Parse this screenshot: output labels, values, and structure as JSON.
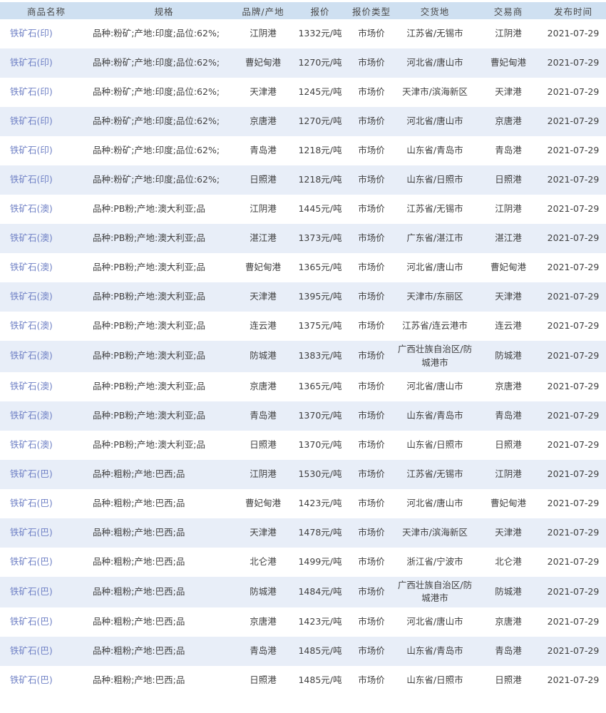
{
  "colors": {
    "header_bg": "#cfe0f1",
    "stripe_bg": "#e8eef8",
    "link": "#6f80c5",
    "text": "#404040",
    "header_text": "#4a4a4a"
  },
  "table": {
    "columns": [
      {
        "key": "product",
        "label": "商品名称"
      },
      {
        "key": "spec",
        "label": "规格"
      },
      {
        "key": "brand_origin",
        "label": "品牌/产地"
      },
      {
        "key": "price",
        "label": "报价"
      },
      {
        "key": "price_type",
        "label": "报价类型"
      },
      {
        "key": "delivery_place",
        "label": "交货地"
      },
      {
        "key": "trader",
        "label": "交易商"
      },
      {
        "key": "publish_date",
        "label": "发布时间"
      }
    ],
    "rows": [
      {
        "product": "铁矿石(印)",
        "spec": "品种:粉矿;产地:印度;品位:62%;",
        "brand_origin": "江阴港",
        "price": "1332元/吨",
        "price_type": "市场价",
        "delivery_place": "江苏省/无锡市",
        "trader": "江阴港",
        "publish_date": "2021-07-29"
      },
      {
        "product": "铁矿石(印)",
        "spec": "品种:粉矿;产地:印度;品位:62%;",
        "brand_origin": "曹妃甸港",
        "price": "1270元/吨",
        "price_type": "市场价",
        "delivery_place": "河北省/唐山市",
        "trader": "曹妃甸港",
        "publish_date": "2021-07-29"
      },
      {
        "product": "铁矿石(印)",
        "spec": "品种:粉矿;产地:印度;品位:62%;",
        "brand_origin": "天津港",
        "price": "1245元/吨",
        "price_type": "市场价",
        "delivery_place": "天津市/滨海新区",
        "trader": "天津港",
        "publish_date": "2021-07-29"
      },
      {
        "product": "铁矿石(印)",
        "spec": "品种:粉矿;产地:印度;品位:62%;",
        "brand_origin": "京唐港",
        "price": "1270元/吨",
        "price_type": "市场价",
        "delivery_place": "河北省/唐山市",
        "trader": "京唐港",
        "publish_date": "2021-07-29"
      },
      {
        "product": "铁矿石(印)",
        "spec": "品种:粉矿;产地:印度;品位:62%;",
        "brand_origin": "青岛港",
        "price": "1218元/吨",
        "price_type": "市场价",
        "delivery_place": "山东省/青岛市",
        "trader": "青岛港",
        "publish_date": "2021-07-29"
      },
      {
        "product": "铁矿石(印)",
        "spec": "品种:粉矿;产地:印度;品位:62%;",
        "brand_origin": "日照港",
        "price": "1218元/吨",
        "price_type": "市场价",
        "delivery_place": "山东省/日照市",
        "trader": "日照港",
        "publish_date": "2021-07-29"
      },
      {
        "product": "铁矿石(澳)",
        "spec": "品种:PB粉;产地:澳大利亚;品",
        "brand_origin": "江阴港",
        "price": "1445元/吨",
        "price_type": "市场价",
        "delivery_place": "江苏省/无锡市",
        "trader": "江阴港",
        "publish_date": "2021-07-29"
      },
      {
        "product": "铁矿石(澳)",
        "spec": "品种:PB粉;产地:澳大利亚;品",
        "brand_origin": "湛江港",
        "price": "1373元/吨",
        "price_type": "市场价",
        "delivery_place": "广东省/湛江市",
        "trader": "湛江港",
        "publish_date": "2021-07-29"
      },
      {
        "product": "铁矿石(澳)",
        "spec": "品种:PB粉;产地:澳大利亚;品",
        "brand_origin": "曹妃甸港",
        "price": "1365元/吨",
        "price_type": "市场价",
        "delivery_place": "河北省/唐山市",
        "trader": "曹妃甸港",
        "publish_date": "2021-07-29"
      },
      {
        "product": "铁矿石(澳)",
        "spec": "品种:PB粉;产地:澳大利亚;品",
        "brand_origin": "天津港",
        "price": "1395元/吨",
        "price_type": "市场价",
        "delivery_place": "天津市/东丽区",
        "trader": "天津港",
        "publish_date": "2021-07-29"
      },
      {
        "product": "铁矿石(澳)",
        "spec": "品种:PB粉;产地:澳大利亚;品",
        "brand_origin": "连云港",
        "price": "1375元/吨",
        "price_type": "市场价",
        "delivery_place": "江苏省/连云港市",
        "trader": "连云港",
        "publish_date": "2021-07-29"
      },
      {
        "product": "铁矿石(澳)",
        "spec": "品种:PB粉;产地:澳大利亚;品",
        "brand_origin": "防城港",
        "price": "1383元/吨",
        "price_type": "市场价",
        "delivery_place": "广西壮族自治区/防城港市",
        "trader": "防城港",
        "publish_date": "2021-07-29"
      },
      {
        "product": "铁矿石(澳)",
        "spec": "品种:PB粉;产地:澳大利亚;品",
        "brand_origin": "京唐港",
        "price": "1365元/吨",
        "price_type": "市场价",
        "delivery_place": "河北省/唐山市",
        "trader": "京唐港",
        "publish_date": "2021-07-29"
      },
      {
        "product": "铁矿石(澳)",
        "spec": "品种:PB粉;产地:澳大利亚;品",
        "brand_origin": "青岛港",
        "price": "1370元/吨",
        "price_type": "市场价",
        "delivery_place": "山东省/青岛市",
        "trader": "青岛港",
        "publish_date": "2021-07-29"
      },
      {
        "product": "铁矿石(澳)",
        "spec": "品种:PB粉;产地:澳大利亚;品",
        "brand_origin": "日照港",
        "price": "1370元/吨",
        "price_type": "市场价",
        "delivery_place": "山东省/日照市",
        "trader": "日照港",
        "publish_date": "2021-07-29"
      },
      {
        "product": "铁矿石(巴)",
        "spec": "品种:粗粉;产地:巴西;品",
        "brand_origin": "江阴港",
        "price": "1530元/吨",
        "price_type": "市场价",
        "delivery_place": "江苏省/无锡市",
        "trader": "江阴港",
        "publish_date": "2021-07-29"
      },
      {
        "product": "铁矿石(巴)",
        "spec": "品种:粗粉;产地:巴西;品",
        "brand_origin": "曹妃甸港",
        "price": "1423元/吨",
        "price_type": "市场价",
        "delivery_place": "河北省/唐山市",
        "trader": "曹妃甸港",
        "publish_date": "2021-07-29"
      },
      {
        "product": "铁矿石(巴)",
        "spec": "品种:粗粉;产地:巴西;品",
        "brand_origin": "天津港",
        "price": "1478元/吨",
        "price_type": "市场价",
        "delivery_place": "天津市/滨海新区",
        "trader": "天津港",
        "publish_date": "2021-07-29"
      },
      {
        "product": "铁矿石(巴)",
        "spec": "品种:粗粉;产地:巴西;品",
        "brand_origin": "北仑港",
        "price": "1499元/吨",
        "price_type": "市场价",
        "delivery_place": "浙江省/宁波市",
        "trader": "北仑港",
        "publish_date": "2021-07-29"
      },
      {
        "product": "铁矿石(巴)",
        "spec": "品种:粗粉;产地:巴西;品",
        "brand_origin": "防城港",
        "price": "1484元/吨",
        "price_type": "市场价",
        "delivery_place": "广西壮族自治区/防城港市",
        "trader": "防城港",
        "publish_date": "2021-07-29"
      },
      {
        "product": "铁矿石(巴)",
        "spec": "品种:粗粉;产地:巴西;品",
        "brand_origin": "京唐港",
        "price": "1423元/吨",
        "price_type": "市场价",
        "delivery_place": "河北省/唐山市",
        "trader": "京唐港",
        "publish_date": "2021-07-29"
      },
      {
        "product": "铁矿石(巴)",
        "spec": "品种:粗粉;产地:巴西;品",
        "brand_origin": "青岛港",
        "price": "1485元/吨",
        "price_type": "市场价",
        "delivery_place": "山东省/青岛市",
        "trader": "青岛港",
        "publish_date": "2021-07-29"
      },
      {
        "product": "铁矿石(巴)",
        "spec": "品种:粗粉;产地:巴西;品",
        "brand_origin": "日照港",
        "price": "1485元/吨",
        "price_type": "市场价",
        "delivery_place": "山东省/日照市",
        "trader": "日照港",
        "publish_date": "2021-07-29"
      }
    ]
  }
}
